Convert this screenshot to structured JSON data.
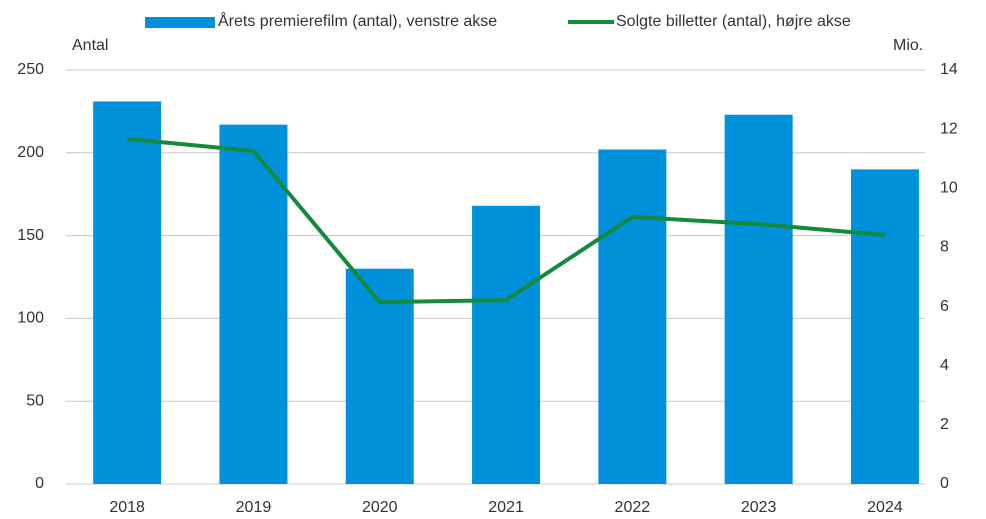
{
  "chart_data": {
    "type": "bar_line",
    "categories": [
      "2018",
      "2019",
      "2020",
      "2021",
      "2022",
      "2023",
      "2024"
    ],
    "series": [
      {
        "name": "Årets premierefilm (antal), venstre akse",
        "color": "#0091da",
        "type": "bar",
        "values": [
          231,
          217,
          130,
          168,
          202,
          223,
          190
        ]
      },
      {
        "name": "Solgte billetter (antal), højre akse",
        "color": "#138a3c",
        "type": "line",
        "axis": "y2",
        "values": [
          11.67,
          11.26,
          6.15,
          6.22,
          9.03,
          8.79,
          8.42
        ]
      }
    ],
    "ylabel": "Antal",
    "y2label": "Mio.",
    "ylim": [
      0,
      250
    ],
    "yticks": [
      0,
      50,
      100,
      150,
      200,
      250
    ],
    "y2lim": [
      0,
      14
    ],
    "y2ticks": [
      0,
      2,
      4,
      6,
      8,
      10,
      12,
      14
    ],
    "grid": true,
    "legend": "top"
  }
}
